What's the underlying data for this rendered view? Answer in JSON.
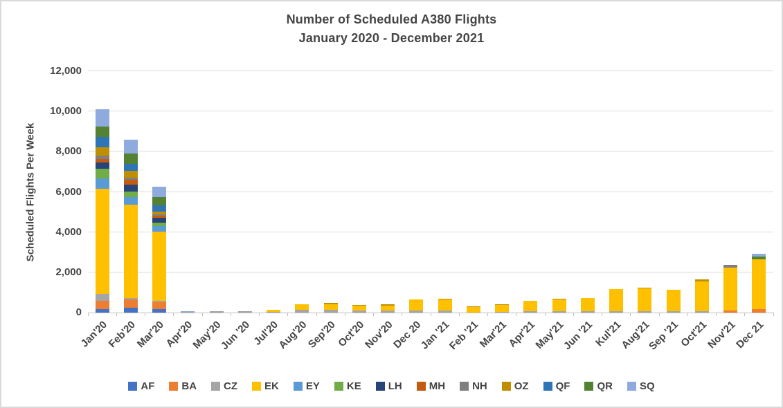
{
  "window": {
    "background_color": "#FFFFFF",
    "frame_border_color": "#D9D9D9"
  },
  "colors": {
    "text": "#454545",
    "gridline": "#D9D9D9",
    "axis_line": "#BFBFBF"
  },
  "chart_data": {
    "type": "bar",
    "stacked": true,
    "title": "Number of Scheduled A380 Flights",
    "subtitle": "January 2020 - December 2021",
    "ylabel": "Scheduled Flights Per Week",
    "xlabel": "",
    "ylim": [
      0,
      12000
    ],
    "ytick_step": 2000,
    "ytick_labels": [
      "0",
      "2,000",
      "4,000",
      "6,000",
      "8,000",
      "10,000",
      "12,000"
    ],
    "grid": true,
    "legend_position": "bottom",
    "categories": [
      "Jan'20",
      "Feb'20",
      "Mar'20",
      "Apr'20",
      "May'20",
      "Jun '20",
      "Jul'20",
      "Aug'20",
      "Sep'20",
      "Oct'20",
      "Nov'20",
      "Dec 20",
      "Jan '21",
      "Feb '21",
      "Mar'21",
      "Apr'21",
      "May'21",
      "Jun '21",
      "Kul'21",
      "Aug'21",
      "Sep '21",
      "Oct'21",
      "Nov'21",
      "Dec 21"
    ],
    "series": [
      {
        "name": "AF",
        "color": "#4472C4",
        "values": [
          180,
          230,
          170,
          0,
          0,
          0,
          0,
          0,
          0,
          0,
          0,
          0,
          0,
          0,
          0,
          0,
          0,
          0,
          0,
          0,
          0,
          0,
          0,
          0
        ]
      },
      {
        "name": "BA",
        "color": "#ED7D31",
        "values": [
          410,
          420,
          340,
          0,
          0,
          0,
          0,
          0,
          0,
          0,
          0,
          0,
          0,
          0,
          0,
          0,
          0,
          0,
          0,
          0,
          0,
          0,
          120,
          160
        ]
      },
      {
        "name": "CZ",
        "color": "#A5A5A5",
        "values": [
          340,
          60,
          60,
          35,
          70,
          60,
          50,
          140,
          140,
          120,
          110,
          100,
          90,
          0,
          50,
          60,
          60,
          60,
          60,
          60,
          60,
          60,
          0,
          0
        ]
      },
      {
        "name": "EK",
        "color": "#FFC000",
        "values": [
          5230,
          4640,
          3450,
          0,
          0,
          0,
          90,
          260,
          270,
          210,
          230,
          570,
          560,
          260,
          330,
          510,
          590,
          680,
          1120,
          1150,
          1090,
          1490,
          2120,
          2480
        ]
      },
      {
        "name": "EY",
        "color": "#5B9BD5",
        "values": [
          520,
          400,
          290,
          0,
          0,
          0,
          0,
          0,
          0,
          0,
          0,
          0,
          0,
          0,
          0,
          0,
          0,
          0,
          0,
          0,
          0,
          0,
          0,
          0
        ]
      },
      {
        "name": "KE",
        "color": "#70AD47",
        "values": [
          460,
          280,
          170,
          0,
          0,
          0,
          0,
          0,
          0,
          0,
          0,
          0,
          0,
          0,
          0,
          0,
          0,
          0,
          0,
          0,
          0,
          0,
          0,
          0
        ]
      },
      {
        "name": "LH",
        "color": "#264478",
        "values": [
          320,
          330,
          230,
          0,
          0,
          0,
          0,
          0,
          0,
          0,
          0,
          0,
          0,
          0,
          0,
          0,
          0,
          0,
          0,
          0,
          0,
          0,
          0,
          0
        ]
      },
      {
        "name": "MH",
        "color": "#C55A11",
        "values": [
          170,
          240,
          120,
          0,
          0,
          0,
          0,
          0,
          0,
          0,
          0,
          0,
          0,
          0,
          0,
          0,
          0,
          0,
          0,
          0,
          0,
          0,
          0,
          0
        ]
      },
      {
        "name": "NH",
        "color": "#7F7F7F",
        "values": [
          170,
          100,
          60,
          0,
          0,
          0,
          0,
          0,
          0,
          0,
          0,
          0,
          0,
          0,
          0,
          0,
          0,
          0,
          0,
          0,
          0,
          0,
          120,
          0
        ]
      },
      {
        "name": "OZ",
        "color": "#BF8F00",
        "values": [
          420,
          360,
          120,
          0,
          0,
          0,
          0,
          0,
          70,
          60,
          70,
          0,
          50,
          50,
          40,
          0,
          50,
          0,
          0,
          40,
          0,
          100,
          0,
          0
        ]
      },
      {
        "name": "QF",
        "color": "#2E75B6",
        "values": [
          520,
          320,
          340,
          0,
          0,
          0,
          0,
          0,
          0,
          0,
          0,
          0,
          0,
          0,
          0,
          0,
          0,
          0,
          0,
          0,
          0,
          0,
          0,
          0
        ]
      },
      {
        "name": "QR",
        "color": "#548235",
        "values": [
          520,
          530,
          400,
          0,
          0,
          0,
          0,
          0,
          0,
          0,
          0,
          0,
          0,
          0,
          0,
          0,
          0,
          0,
          0,
          0,
          0,
          0,
          0,
          150
        ]
      },
      {
        "name": "SQ",
        "color": "#8FAADC",
        "values": [
          860,
          690,
          520,
          35,
          0,
          0,
          0,
          0,
          0,
          0,
          0,
          0,
          0,
          0,
          0,
          0,
          0,
          0,
          0,
          0,
          0,
          0,
          0,
          150
        ]
      }
    ]
  }
}
